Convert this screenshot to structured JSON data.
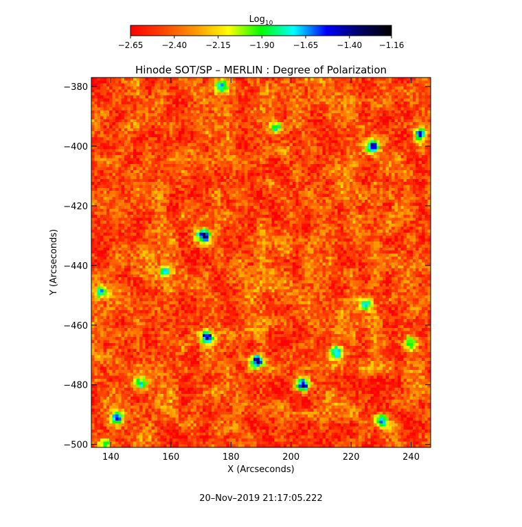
{
  "chart_data": {
    "type": "heatmap",
    "title": "Hinode SOT/SP – MERLIN : Degree of Polarization",
    "xlabel": "X (Arcseconds)",
    "ylabel": "Y (Arcseconds)",
    "xlim": [
      133.5,
      246.5
    ],
    "ylim": [
      -501,
      -377
    ],
    "x_ticks": [
      140,
      160,
      180,
      200,
      220,
      240
    ],
    "x_tick_labels": [
      "140",
      "160",
      "180",
      "200",
      "220",
      "240"
    ],
    "y_ticks": [
      -380,
      -400,
      -420,
      -440,
      -460,
      -480,
      -500
    ],
    "y_tick_labels": [
      "−380",
      "−400",
      "−420",
      "−440",
      "−460",
      "−480",
      "−500"
    ],
    "colorbar": {
      "label_main": "Log",
      "label_sub": "10",
      "range": [
        -2.65,
        -1.16
      ],
      "ticks": [
        -2.65,
        -2.4,
        -2.15,
        -1.9,
        -1.65,
        -1.4,
        -1.16
      ],
      "tick_labels": [
        "−2.65",
        "−2.40",
        "−2.15",
        "−1.90",
        "−1.65",
        "−1.40",
        "−1.16"
      ],
      "colors": [
        "#ff0000",
        "#ff4400",
        "#ff9900",
        "#ffff00",
        "#00ff00",
        "#00ffff",
        "#0000ff",
        "#000066",
        "#000000"
      ]
    },
    "background_level": -2.45,
    "features": [
      {
        "x": 171,
        "y": -430,
        "peak": -1.35
      },
      {
        "x": 172,
        "y": -464,
        "peak": -1.3
      },
      {
        "x": 189,
        "y": -472,
        "peak": -1.3
      },
      {
        "x": 204,
        "y": -480,
        "peak": -1.3
      },
      {
        "x": 150,
        "y": -480,
        "peak": -1.8
      },
      {
        "x": 142,
        "y": -491,
        "peak": -1.5
      },
      {
        "x": 137,
        "y": -449,
        "peak": -1.6
      },
      {
        "x": 227,
        "y": -400,
        "peak": -1.5
      },
      {
        "x": 243,
        "y": -396,
        "peak": -1.6
      },
      {
        "x": 225,
        "y": -453,
        "peak": -1.6
      },
      {
        "x": 230,
        "y": -492,
        "peak": -1.6
      },
      {
        "x": 195,
        "y": -394,
        "peak": -1.7
      },
      {
        "x": 177,
        "y": -380,
        "peak": -1.8
      },
      {
        "x": 240,
        "y": -466,
        "peak": -1.8
      },
      {
        "x": 215,
        "y": -469,
        "peak": -1.6
      },
      {
        "x": 158,
        "y": -442,
        "peak": -1.8
      },
      {
        "x": 138,
        "y": -500,
        "peak": -1.8
      }
    ]
  },
  "footer": {
    "timestamp": "20–Nov–2019 21:17:05.222"
  }
}
